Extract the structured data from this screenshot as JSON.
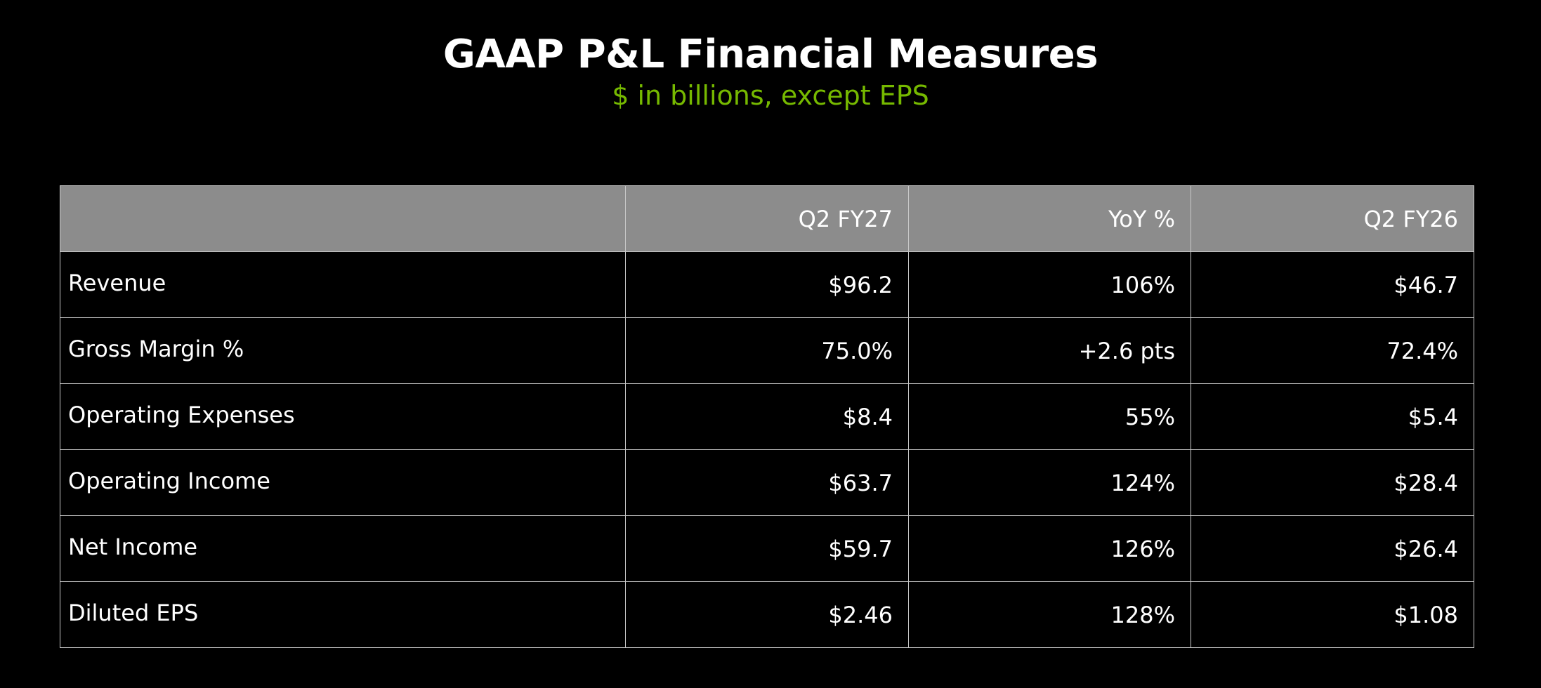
{
  "title": "GAAP P&L Financial Measures",
  "subtitle": "$ in billions, except EPS",
  "colors": {
    "background": "#000000",
    "subtitle": "#76b900",
    "header_fill": "#8c8c8c",
    "grid": "#c8c8c8"
  },
  "table": {
    "columns": [
      "",
      "Q2 FY27",
      "YoY %",
      "Q2 FY26"
    ],
    "rows": [
      {
        "label": "Revenue",
        "q2fy27": "$96.2",
        "yoy": "106%",
        "q2fy26": "$46.7"
      },
      {
        "label": "Gross Margin %",
        "q2fy27": "75.0%",
        "yoy": "+2.6 pts",
        "q2fy26": "72.4%"
      },
      {
        "label": "Operating Expenses",
        "q2fy27": "$8.4",
        "yoy": "55%",
        "q2fy26": "$5.4"
      },
      {
        "label": "Operating Income",
        "q2fy27": "$63.7",
        "yoy": "124%",
        "q2fy26": "$28.4"
      },
      {
        "label": "Net Income",
        "q2fy27": "$59.7",
        "yoy": "126%",
        "q2fy26": "$26.4"
      },
      {
        "label": "Diluted EPS",
        "q2fy27": "$2.46",
        "yoy": "128%",
        "q2fy26": "$1.08"
      }
    ]
  }
}
